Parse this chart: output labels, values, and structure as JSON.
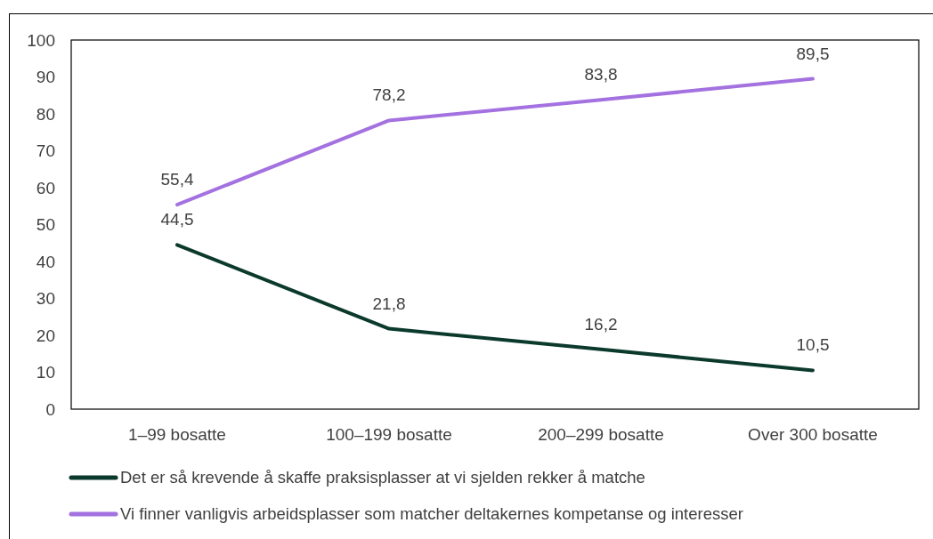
{
  "chart_data": {
    "type": "line",
    "categories": [
      "1–99 bosatte",
      "100–199 bosatte",
      "200–299 bosatte",
      "Over 300 bosatte"
    ],
    "series": [
      {
        "name": "Det er så krevende å skaffe praksisplasser at vi sjelden rekker å matche",
        "color": "#0b3a2c",
        "values": [
          44.5,
          21.8,
          16.2,
          10.5
        ],
        "value_labels": [
          "44,5",
          "21,8",
          "16,2",
          "10,5"
        ]
      },
      {
        "name": "Vi finner vanligvis arbeidsplasser som matcher deltakernes kompetanse og interesser",
        "color": "#a472e0",
        "values": [
          55.4,
          78.2,
          83.8,
          89.5
        ],
        "value_labels": [
          "55,4",
          "78,2",
          "83,8",
          "89,5"
        ]
      }
    ],
    "ylim": [
      0,
      100
    ],
    "yticks": [
      0,
      10,
      20,
      30,
      40,
      50,
      60,
      70,
      80,
      90,
      100
    ],
    "legend": "bottom",
    "line_style": "solid"
  }
}
